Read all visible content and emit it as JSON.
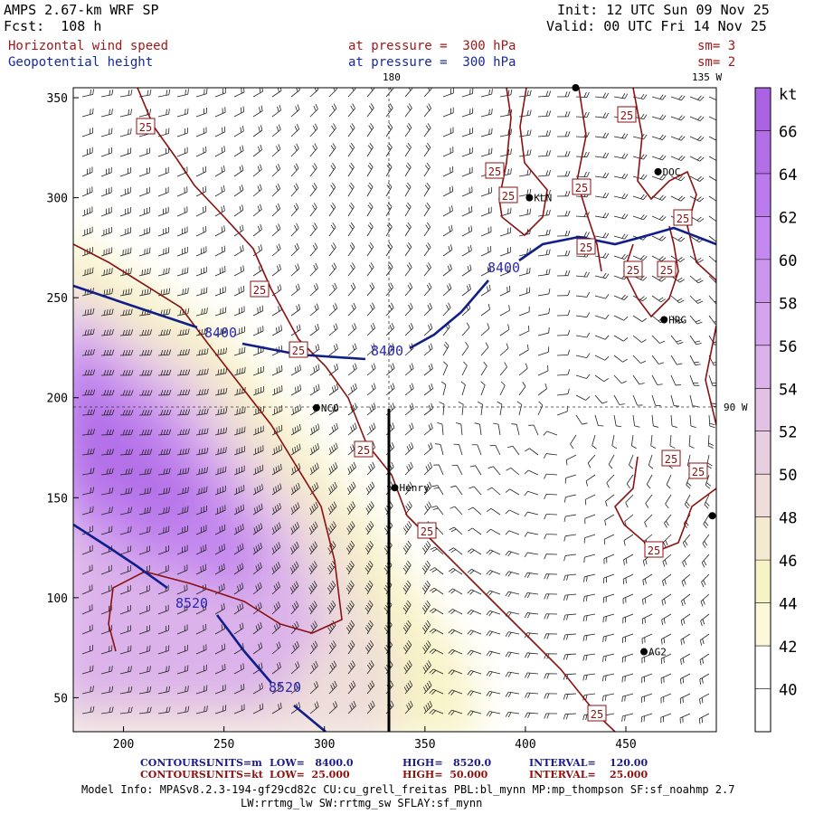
{
  "header": {
    "model": "AMPS 2.67-km WRF SP",
    "init": "Init: 12 UTC Sun 09 Nov 25",
    "fcst": "Fcst:  108 h",
    "valid": "Valid: 00 UTC Fri 14 Nov 25",
    "field1_name": "Horizontal wind speed",
    "field1_level": "at pressure =  300 hPa",
    "field1_sm": "sm= 3",
    "field2_name": "Geopotential height",
    "field2_level": "at pressure =  300 hPa",
    "field2_sm": "sm= 2",
    "colors": {
      "field1": "#a01818",
      "field2": "#1428a0"
    }
  },
  "map": {
    "x_range": [
      175,
      495
    ],
    "y_range": [
      33,
      355
    ],
    "x_ticks": [
      "200",
      "250",
      "300",
      "350",
      "400",
      "450"
    ],
    "y_ticks": [
      "50",
      "100",
      "150",
      "200",
      "250",
      "300",
      "350"
    ],
    "meridian_labels": {
      "top_180": "180",
      "top_135w": "135 W",
      "right_90w": "90 W"
    },
    "stations": [
      {
        "name": "NCO",
        "x": 296,
        "y": 195
      },
      {
        "name": "Henry",
        "x": 335,
        "y": 155
      },
      {
        "name": "KLN",
        "x": 402,
        "y": 300
      },
      {
        "name": "DOC",
        "x": 466,
        "y": 313
      },
      {
        "name": "HRG",
        "x": 469,
        "y": 239
      },
      {
        "name": "AG2",
        "x": 459,
        "y": 73
      },
      {
        "name": "",
        "x": 425,
        "y": 355
      },
      {
        "name": "",
        "x": 493,
        "y": 141
      }
    ],
    "height_contour_labels": [
      "8400",
      "8400",
      "8400",
      "8520",
      "8520"
    ],
    "wind_contour_labels": [
      "25",
      "25",
      "25",
      "25",
      "25",
      "25",
      "25",
      "25",
      "25",
      "25",
      "25",
      "25",
      "25",
      "25",
      "25"
    ]
  },
  "colorbar": {
    "unit": "kt",
    "levels": [
      "40",
      "42",
      "44",
      "46",
      "48",
      "50",
      "52",
      "54",
      "56",
      "58",
      "60",
      "62",
      "64",
      "66"
    ],
    "colors": [
      "#ffffff",
      "#fbf9da",
      "#f8f3c6",
      "#f4ead0",
      "#eeddd9",
      "#e8cfe0",
      "#e2c1e5",
      "#dcb2ea",
      "#d4a4ec",
      "#cc96ee",
      "#c488ee",
      "#bb7bec",
      "#b36fe8",
      "#aa63e3"
    ]
  },
  "footer": {
    "contours1_label": "CONTOURS:",
    "contours1_units": "UNITS=m",
    "contours1_low": "LOW=   8400.0",
    "contours1_high": "HIGH=   8520.0",
    "contours1_interval": "INTERVAL=    120.00",
    "contours2_label": "CONTOURS:",
    "contours2_units": "UNITS=kt",
    "contours2_low": "LOW=  25.000",
    "contours2_high": "HIGH=  50.000",
    "contours2_interval": "INTERVAL=    25.000",
    "model_info1": "Model Info: MPASv8.2.3-194-gf29cd82c CU:cu_grell_freitas PBL:bl_mynn MP:mp_thompson SF:sf_noahmp 2.7",
    "model_info2": "LW:rrtmg_lw SW:rrtmg_sw SFLAY:sf_mynn"
  }
}
